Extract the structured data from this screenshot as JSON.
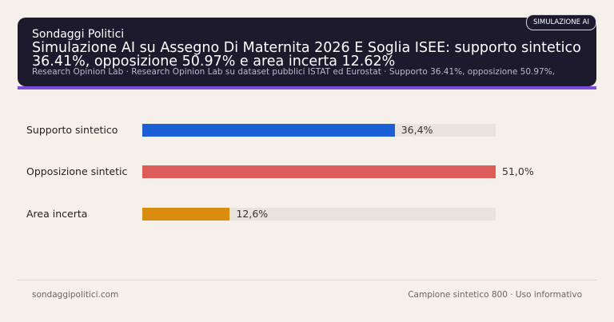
{
  "header": {
    "brand": "Sondaggi Politici",
    "title": "Simulazione AI su Assegno Di Maternita 2026 E Soglia ISEE: supporto sintetico 36.41%, opposizione 50.97% e area incerta 12.62%",
    "subtitle": "Research Opinion Lab · Research Opinion Lab su dataset pubblici ISTAT ed Eurostat · Supporto 36.41%, opposizione 50.97%,",
    "badge": "SIMULAZIONE AI"
  },
  "chart_data": {
    "type": "bar",
    "orientation": "horizontal",
    "categories": [
      "Supporto sintetico",
      "Opposizione sintetic",
      "Area incerta"
    ],
    "values": [
      36.41,
      50.97,
      12.62
    ],
    "value_labels": [
      "36,4%",
      "51,0%",
      "12,6%"
    ],
    "colors": [
      "#1a5fd6",
      "#dc5c5a",
      "#d98c10"
    ],
    "xlim": [
      0,
      50.97
    ]
  },
  "footer": {
    "left": "sondaggipolitici.com",
    "right": "Campione sintetico 800 · Uso informativo"
  }
}
